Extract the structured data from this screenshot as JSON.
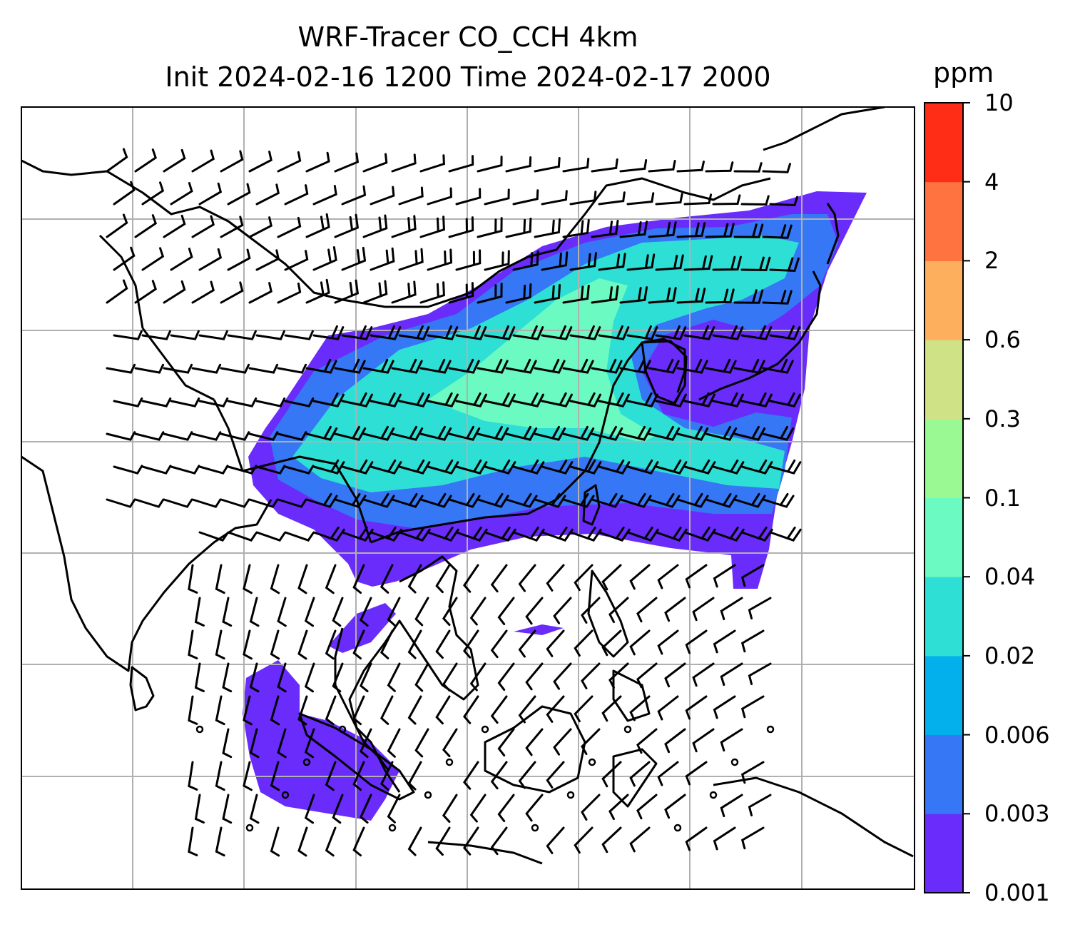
{
  "figure": {
    "title_line1": "WRF-Tracer CO_CCH 4km",
    "title_line2": "Init 2024-02-16 1200 Time 2024-02-17 2000"
  },
  "map": {
    "field_name": "CO_CCH",
    "overlay": "wind barbs",
    "coastlines": true,
    "gridlines": true,
    "gridline_color": "#b0b0b0"
  },
  "colorbar": {
    "label": "ppm",
    "levels": [
      "0.001",
      "0.003",
      "0.006",
      "0.02",
      "0.04",
      "0.1",
      "0.3",
      "0.6",
      "2",
      "4",
      "10"
    ],
    "colors": [
      "#6a2cfb",
      "#3577f5",
      "#04b0eb",
      "#2edfd6",
      "#6bfac2",
      "#9af993",
      "#cfe286",
      "#feaf5d",
      "#ff7340",
      "#ff2c16"
    ]
  }
}
